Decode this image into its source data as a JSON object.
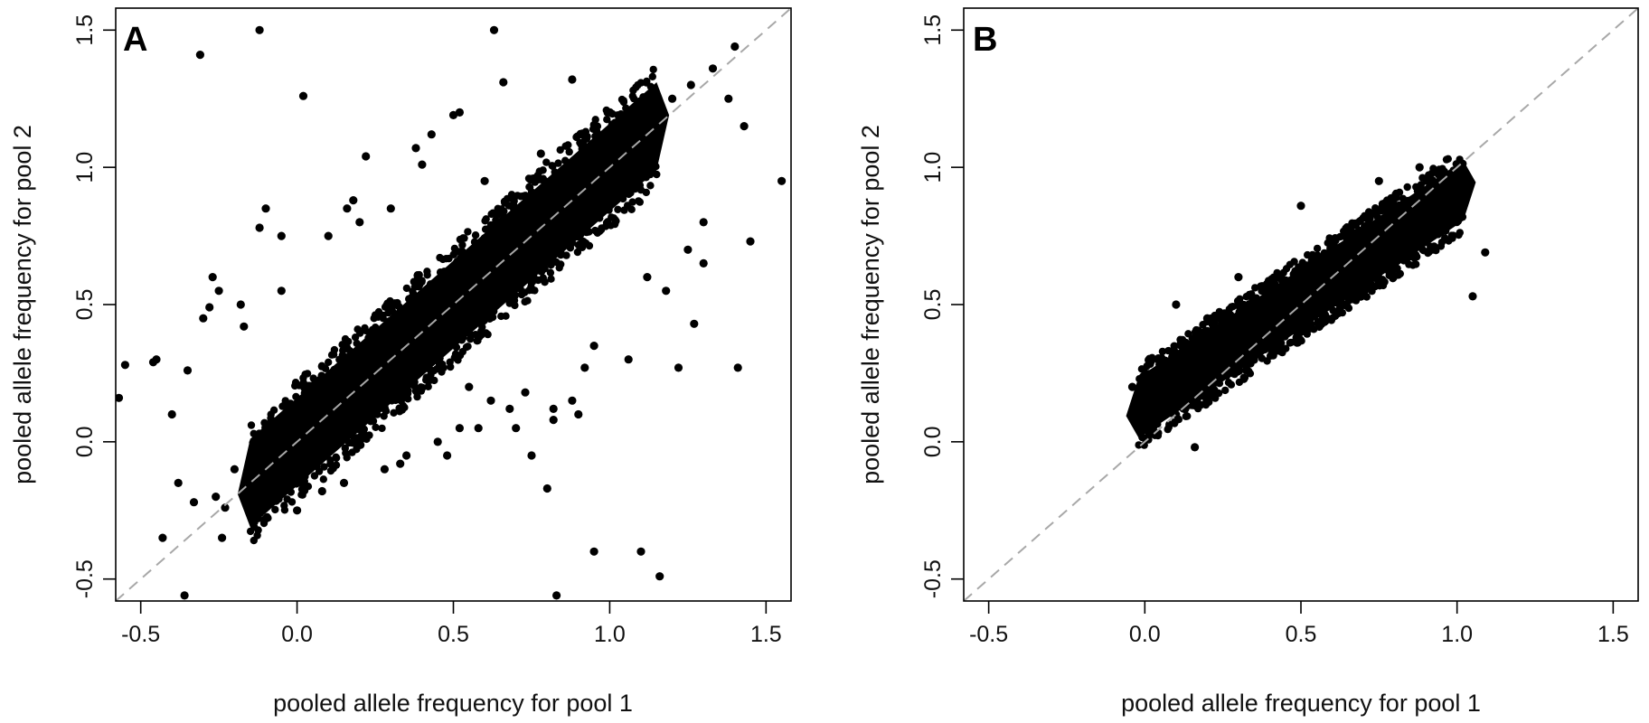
{
  "chart_data": [
    {
      "panel": "A",
      "type": "scatter",
      "xlabel": "pooled allele frequency for pool 1",
      "ylabel": "pooled allele frequency for pool 2",
      "xlim": [
        -0.58,
        1.58
      ],
      "ylim": [
        -0.58,
        1.58
      ],
      "xticks": [
        "-0.5",
        "0.0",
        "0.5",
        "1.0",
        "1.5"
      ],
      "yticks": [
        "-0.5",
        "0.0",
        "0.5",
        "1.0",
        "1.5"
      ],
      "reference_line": {
        "type": "y=x",
        "style": "dashed",
        "color": "#a8a8a8"
      },
      "point_color": "#000000",
      "dense_band": {
        "x_from": -0.15,
        "x_to": 1.15,
        "half_width": 0.16
      },
      "x": [
        -0.12,
        0.63,
        -0.31,
        0.02,
        0.66,
        0.52,
        0.88,
        1.55,
        -0.55,
        -0.57,
        -0.46,
        -0.45,
        -0.35,
        -0.28,
        -0.1,
        -0.12,
        -0.05,
        -0.36,
        0.83,
        0.95,
        1.1,
        1.16,
        0.8,
        0.82,
        1.22,
        1.3,
        1.41,
        1.45,
        1.43,
        1.38,
        1.4,
        1.2,
        1.26,
        1.33,
        0.22,
        0.16,
        0.38,
        0.18,
        0.4,
        0.5,
        0.43,
        0.92,
        0.75,
        0.68,
        0.73,
        0.82,
        0.55,
        1.27,
        -0.4,
        -0.38,
        -0.33,
        -0.24,
        -0.23,
        -0.2,
        -0.1,
        0.0,
        0.08,
        -0.26,
        -0.43,
        1.12,
        1.18,
        1.25,
        1.3,
        1.06,
        0.95,
        0.88,
        0.7,
        0.62,
        0.58,
        0.45,
        0.35,
        0.28,
        -0.18,
        -0.3,
        -0.27,
        -0.25,
        0.1,
        0.2,
        0.3,
        0.6,
        0.78,
        1.0,
        1.08,
        0.9,
        0.48,
        0.52,
        0.33,
        0.15,
        -0.05,
        -0.17
      ],
      "y": [
        1.5,
        1.5,
        1.41,
        1.26,
        1.31,
        1.2,
        1.32,
        0.95,
        0.28,
        0.16,
        0.29,
        0.3,
        0.26,
        0.49,
        0.85,
        0.78,
        0.75,
        -0.56,
        -0.56,
        -0.4,
        -0.4,
        -0.49,
        -0.17,
        0.12,
        0.27,
        0.65,
        0.27,
        0.73,
        1.15,
        1.25,
        1.44,
        1.25,
        1.3,
        1.36,
        1.04,
        0.85,
        1.07,
        0.88,
        1.01,
        1.19,
        1.12,
        0.27,
        -0.05,
        0.12,
        0.18,
        0.08,
        0.2,
        0.43,
        0.1,
        -0.15,
        -0.22,
        -0.35,
        -0.24,
        -0.1,
        -0.28,
        -0.25,
        -0.18,
        -0.2,
        -0.35,
        0.6,
        0.55,
        0.7,
        0.8,
        0.3,
        0.35,
        0.15,
        0.05,
        0.15,
        0.05,
        0.0,
        -0.05,
        -0.1,
        0.5,
        0.45,
        0.6,
        0.55,
        0.75,
        0.8,
        0.85,
        0.95,
        1.05,
        1.2,
        1.15,
        0.1,
        -0.05,
        0.05,
        -0.08,
        -0.15,
        0.55,
        0.42
      ]
    },
    {
      "panel": "B",
      "type": "scatter",
      "xlabel": "pooled allele frequency for pool 1",
      "ylabel": "pooled allele frequency for pool 2",
      "xlim": [
        -0.58,
        1.58
      ],
      "ylim": [
        -0.58,
        1.58
      ],
      "xticks": [
        "-0.5",
        "0.0",
        "0.5",
        "1.0",
        "1.5"
      ],
      "yticks": [
        "-0.5",
        "0.0",
        "0.5",
        "1.0",
        "1.5"
      ],
      "reference_line": {
        "type": "y=x",
        "style": "dashed",
        "color": "#a8a8a8"
      },
      "point_color": "#000000",
      "dense_band": {
        "x_from": -0.02,
        "x_to": 1.02,
        "half_width": 0.11,
        "band_intercept": 0.14,
        "band_slope": 0.76
      },
      "x": [
        1.09,
        1.05,
        0.1,
        0.5,
        -0.04,
        0.16,
        0.88,
        0.75,
        0.3,
        0.2
      ],
      "y": [
        0.69,
        0.53,
        0.5,
        0.86,
        0.2,
        -0.02,
        1.0,
        0.95,
        0.6,
        0.45
      ]
    }
  ]
}
